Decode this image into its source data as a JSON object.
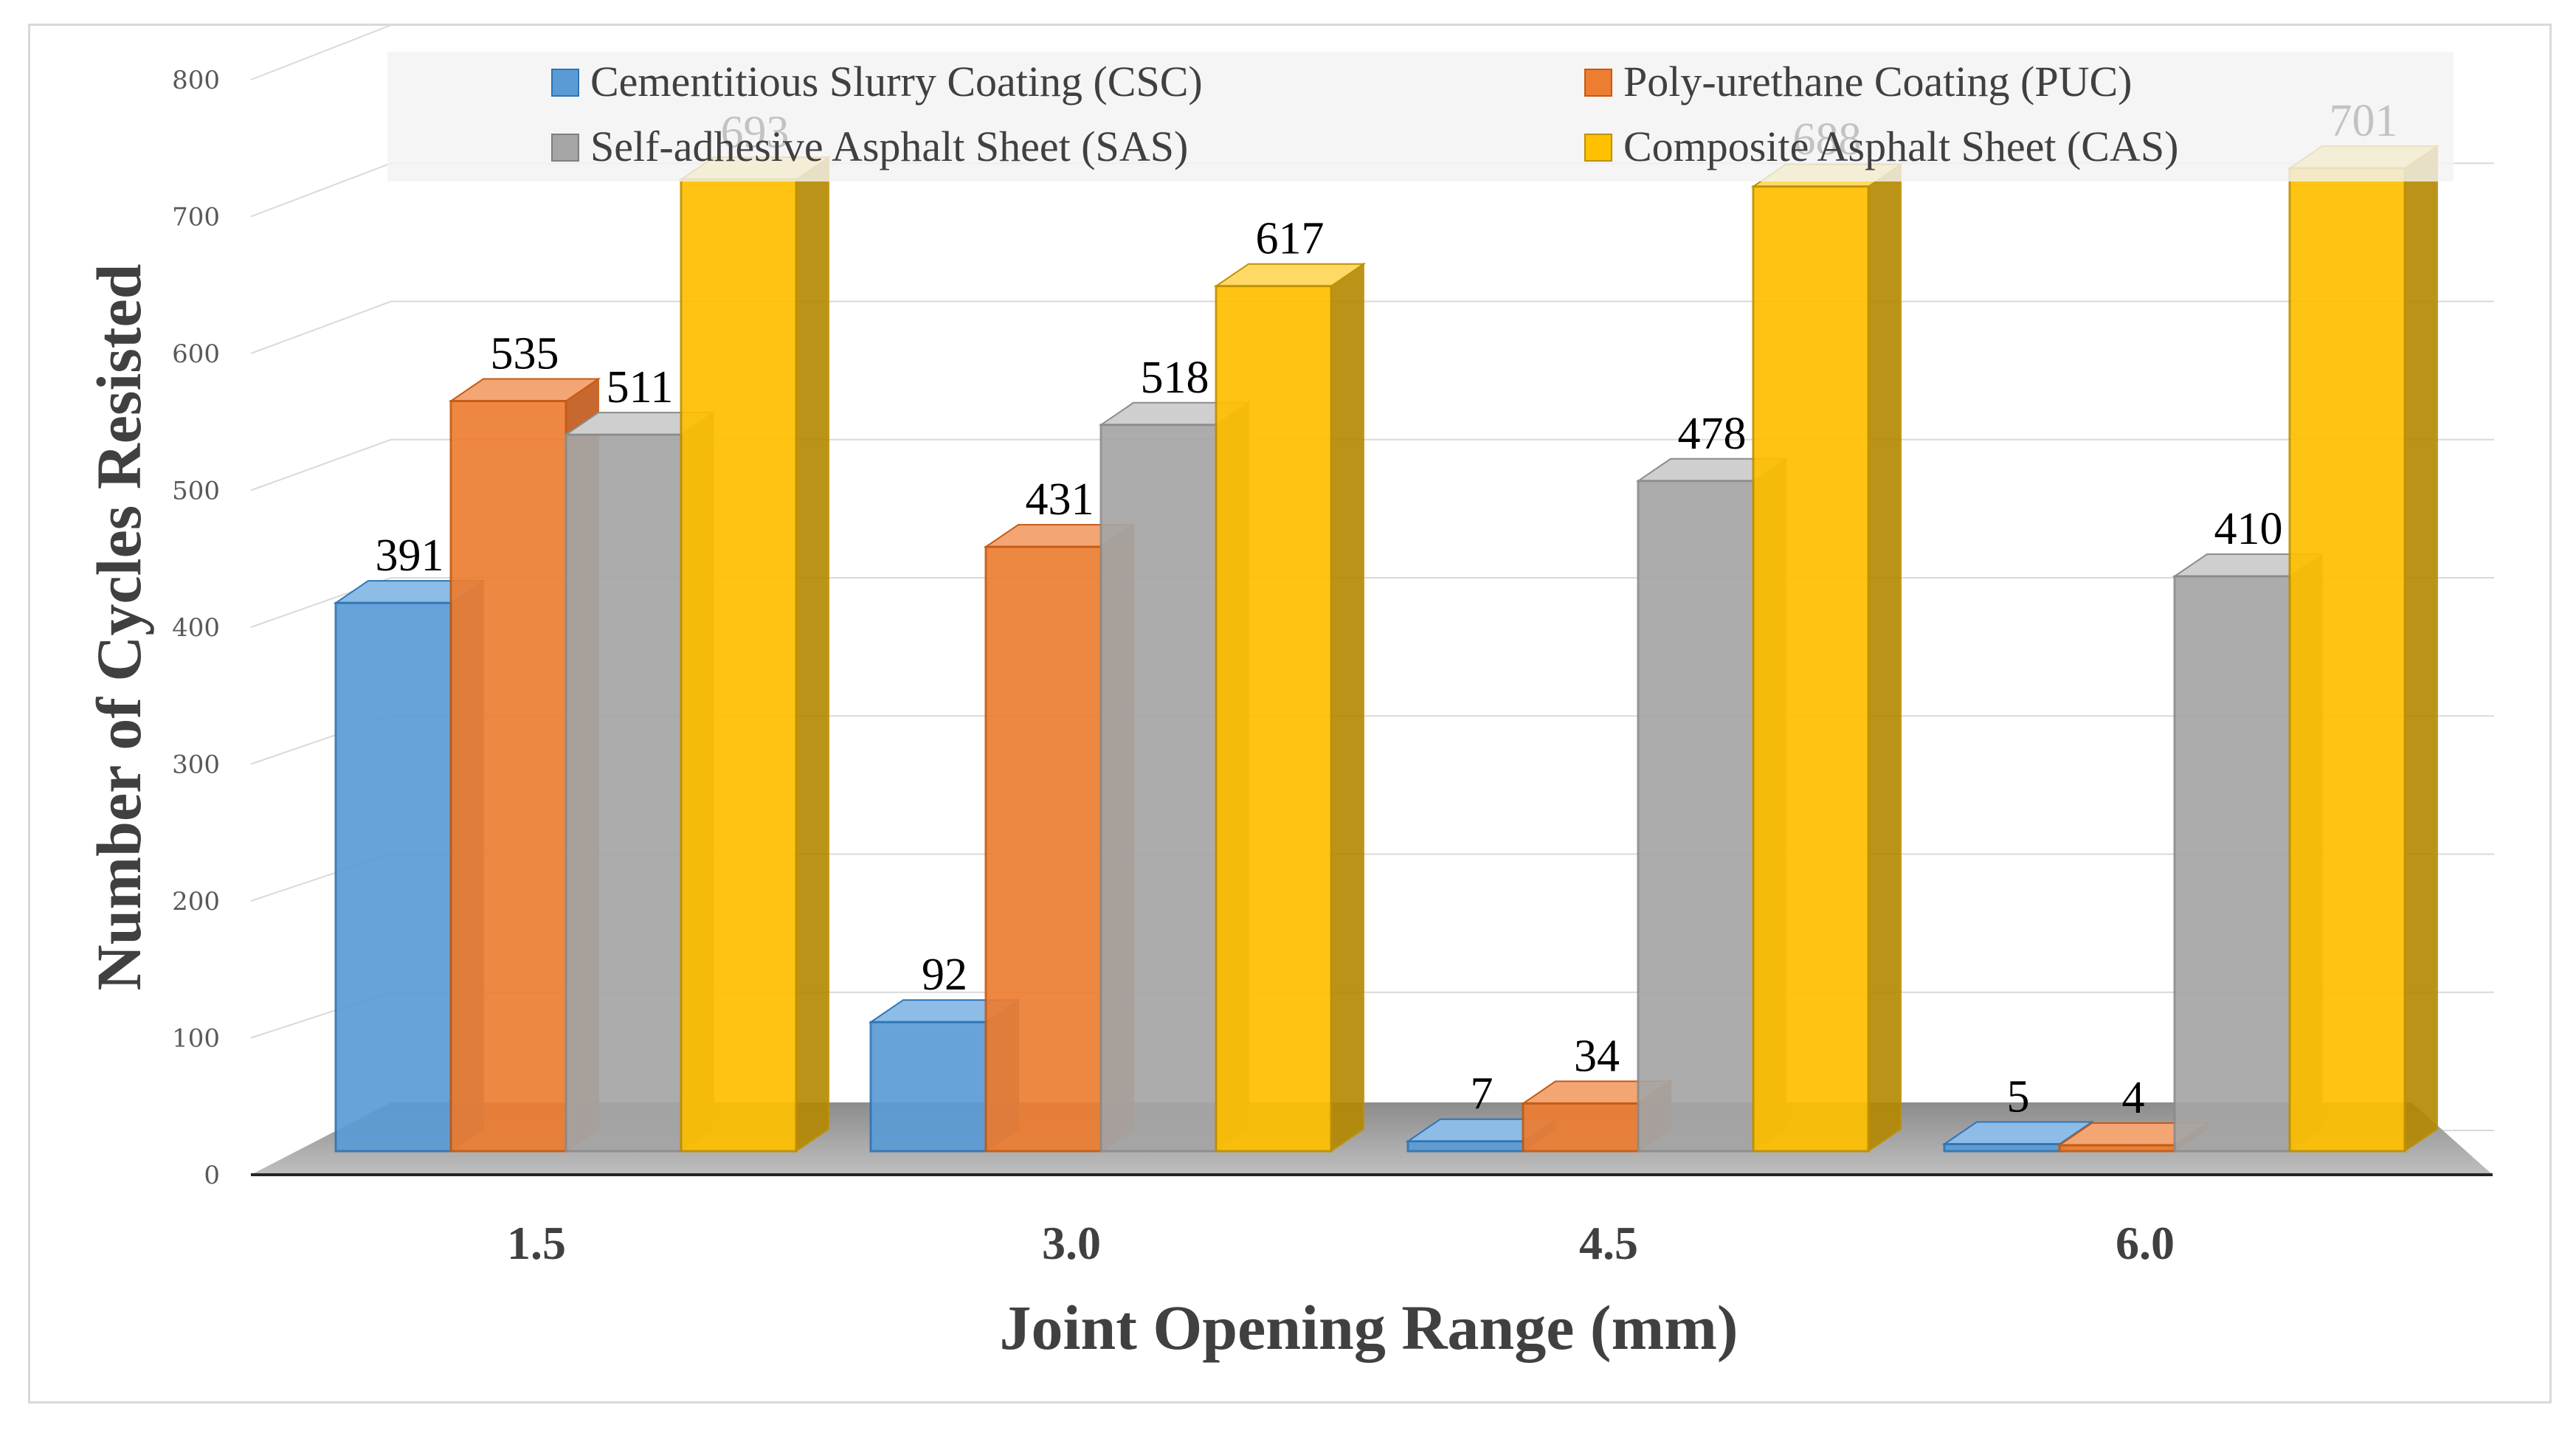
{
  "chart_data": {
    "type": "bar",
    "style": "3d-clustered-column",
    "title": "",
    "xlabel": "Joint Opening Range (mm)",
    "ylabel": "Number of Cycles Resisted",
    "categories": [
      "1.5",
      "3.0",
      "4.5",
      "6.0"
    ],
    "ylim": [
      0,
      800
    ],
    "yticks": [
      0,
      100,
      200,
      300,
      400,
      500,
      600,
      700,
      800
    ],
    "grid": true,
    "legend_position": "top",
    "series": [
      {
        "name": "Cementitious Slurry Coating (CSC)",
        "color": "#5b9bd5",
        "values": [
          391,
          92,
          7,
          5
        ]
      },
      {
        "name": "Poly-urethane Coating (PUC)",
        "color": "#ed7d31",
        "values": [
          535,
          431,
          34,
          4
        ]
      },
      {
        "name": "Self-adhesive Asphalt Sheet (SAS)",
        "color": "#a5a5a5",
        "values": [
          511,
          518,
          478,
          410
        ]
      },
      {
        "name": "Composite Asphalt Sheet (CAS)",
        "color": "#ffc000",
        "values": [
          693,
          617,
          688,
          701
        ]
      }
    ]
  }
}
